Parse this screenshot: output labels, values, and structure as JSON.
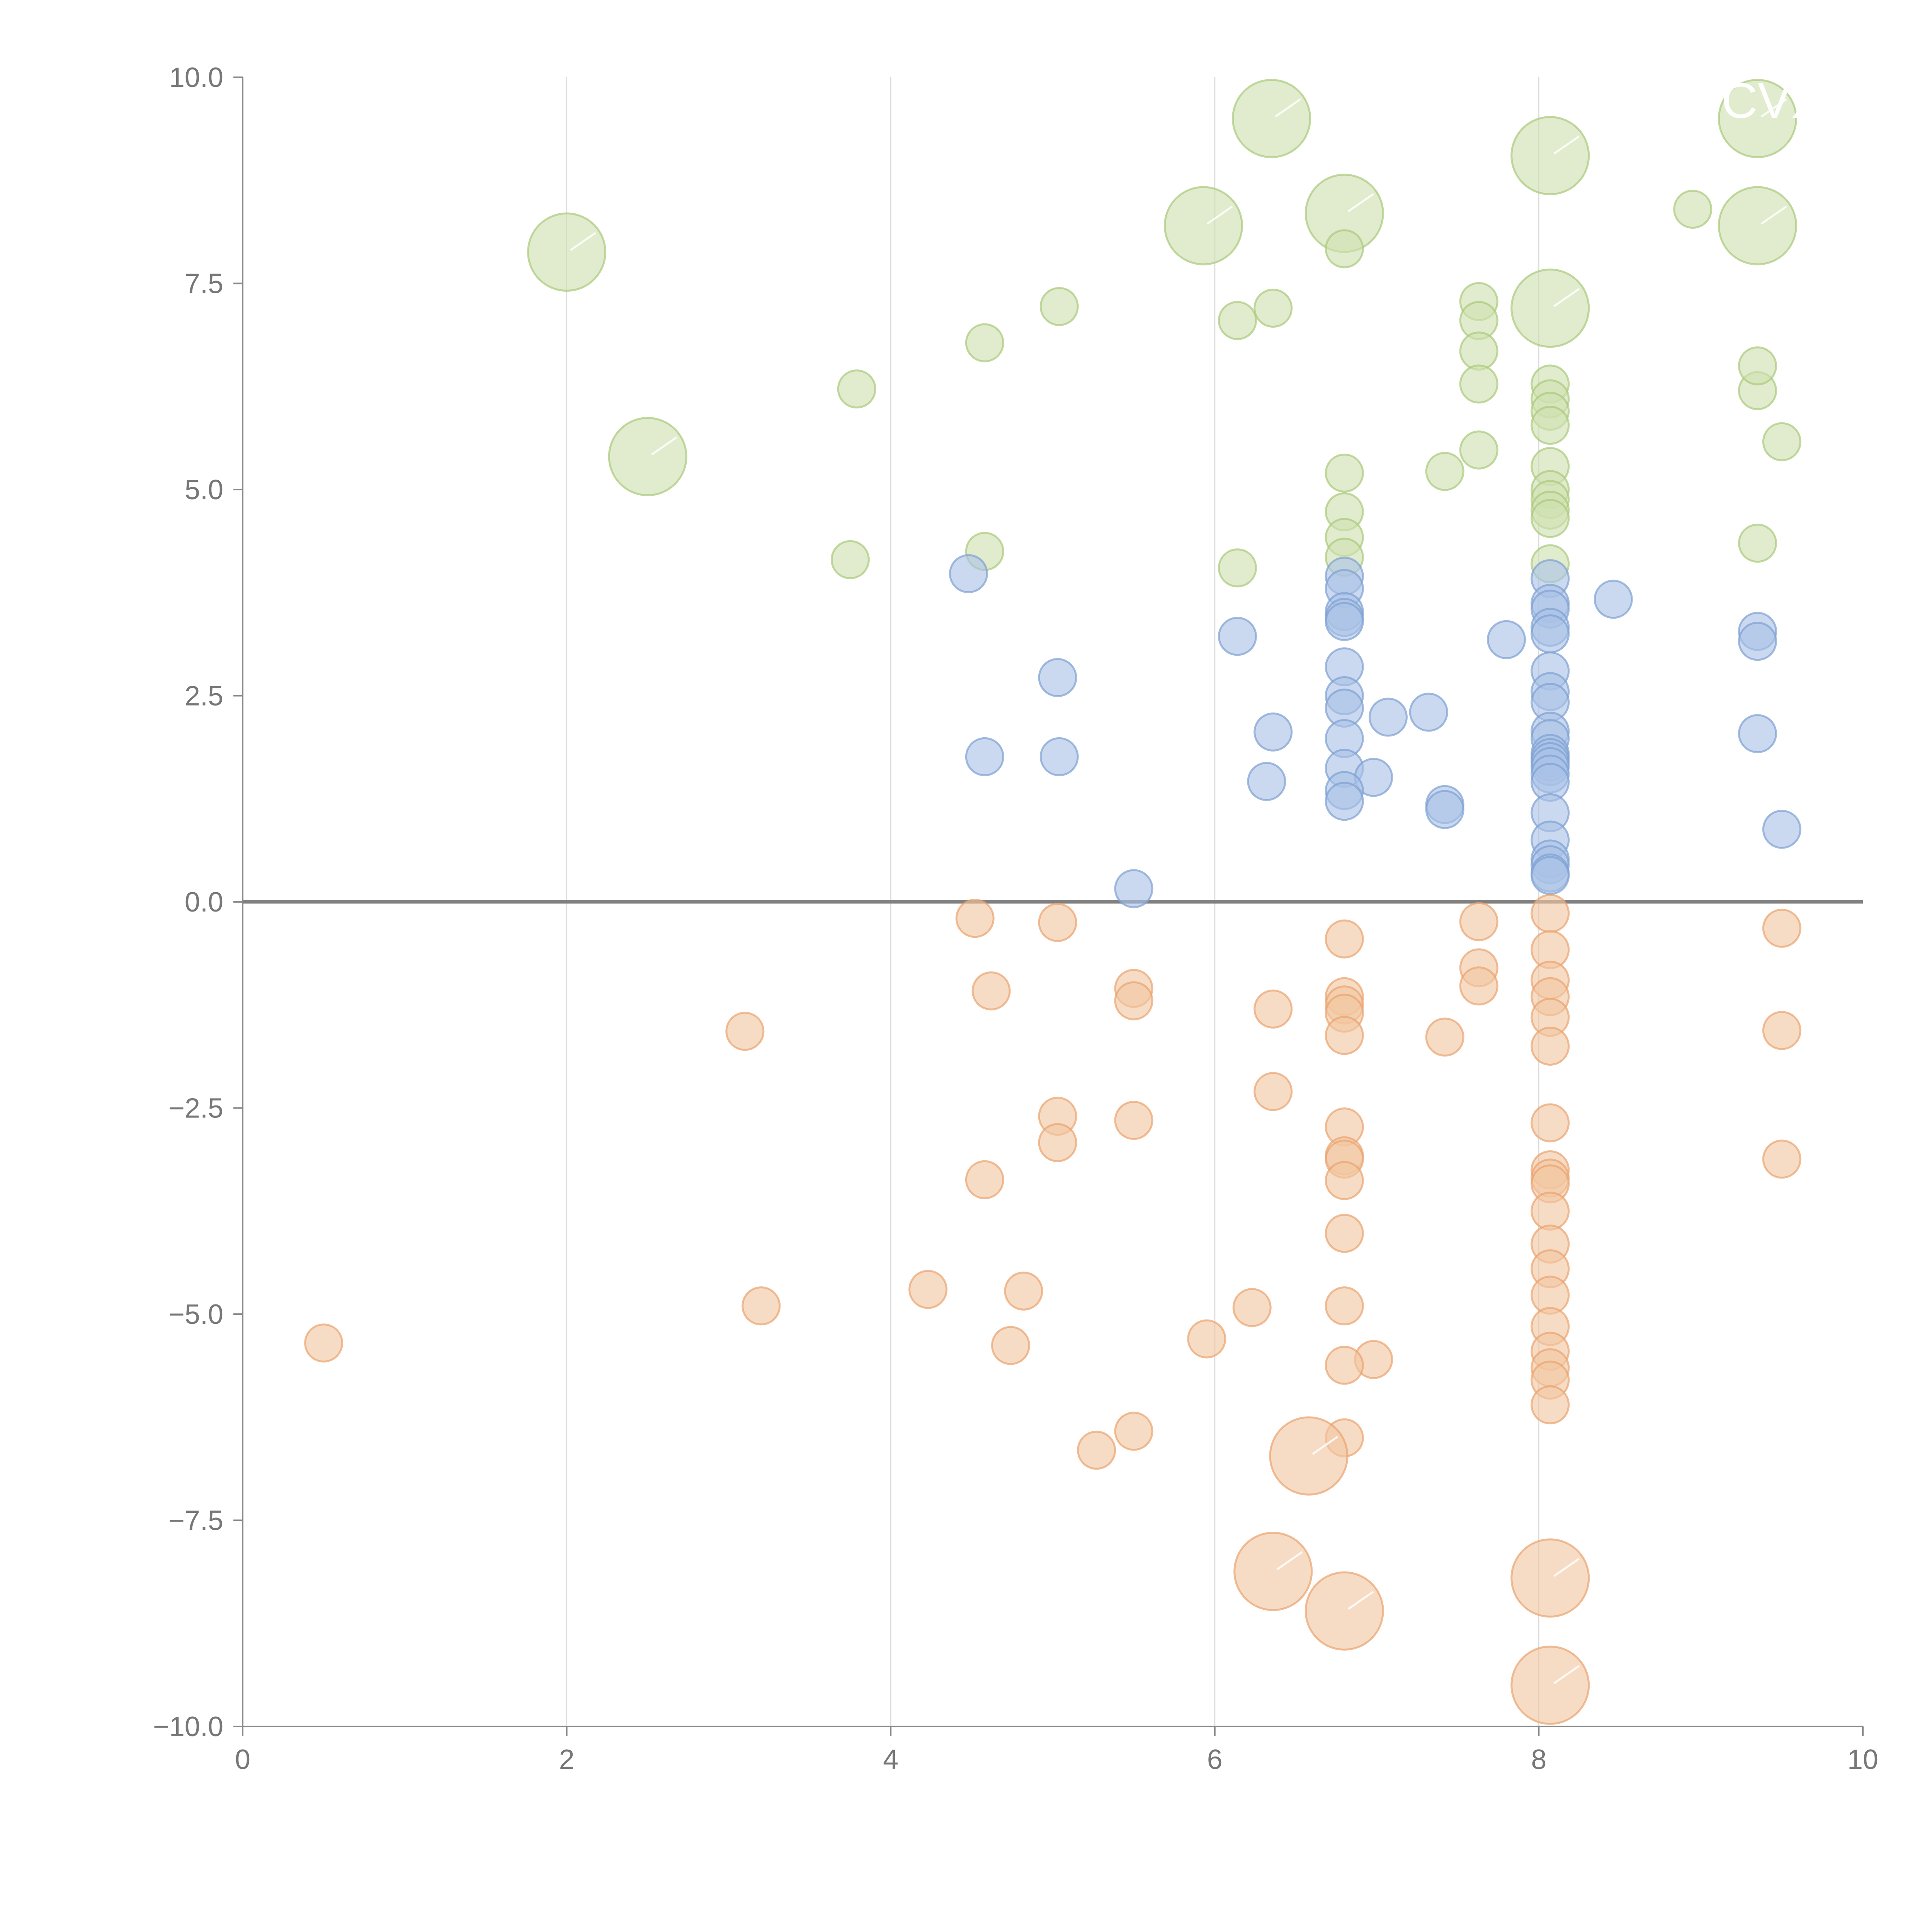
{
  "chart_data": {
    "type": "scatter",
    "subtype": "bubble",
    "title": "",
    "xlabel": "",
    "ylabel": "",
    "xlim": [
      0,
      10
    ],
    "ylim": [
      -10,
      10
    ],
    "x_ticks": [
      "0",
      "2",
      "4",
      "6",
      "8",
      "10"
    ],
    "y_ticks": [
      "10.0",
      "7.5",
      "5.0",
      "2.5",
      "0.0",
      "−2.5",
      "−5.0",
      "−7.5",
      "−10.0"
    ],
    "grid": "vertical",
    "zero_line": true,
    "series": [
      {
        "name": "green",
        "color": "#a9c97a",
        "fill": "#cfe0b0",
        "points": [
          [
            6.35,
            9.5,
            1
          ],
          [
            9.35,
            9.5,
            1
          ],
          [
            8.07,
            9.05,
            1
          ],
          [
            6.8,
            8.35,
            1
          ],
          [
            5.93,
            8.2,
            1
          ],
          [
            9.35,
            8.2,
            1
          ],
          [
            2.0,
            7.88,
            1
          ],
          [
            8.07,
            7.2,
            1
          ],
          [
            2.5,
            5.4,
            1
          ],
          [
            8.95,
            8.4,
            0
          ],
          [
            6.8,
            7.92,
            0
          ],
          [
            7.63,
            7.28,
            0
          ],
          [
            5.04,
            7.22,
            0
          ],
          [
            6.36,
            7.2,
            0
          ],
          [
            7.63,
            7.05,
            0
          ],
          [
            6.14,
            7.05,
            0
          ],
          [
            4.58,
            6.78,
            0
          ],
          [
            7.63,
            6.68,
            0
          ],
          [
            8.07,
            6.28,
            0
          ],
          [
            7.63,
            6.28,
            0
          ],
          [
            3.79,
            6.22,
            0
          ],
          [
            9.35,
            6.2,
            0
          ],
          [
            9.35,
            6.5,
            0
          ],
          [
            8.07,
            6.1,
            0
          ],
          [
            8.07,
            5.95,
            0
          ],
          [
            8.07,
            5.78,
            0
          ],
          [
            9.5,
            5.58,
            0
          ],
          [
            7.63,
            5.48,
            0
          ],
          [
            8.07,
            5.28,
            0
          ],
          [
            6.8,
            5.2,
            0
          ],
          [
            7.42,
            5.22,
            0
          ],
          [
            8.07,
            5.0,
            0
          ],
          [
            8.07,
            4.88,
            0
          ],
          [
            8.07,
            4.75,
            0
          ],
          [
            6.8,
            4.73,
            0
          ],
          [
            8.07,
            4.65,
            0
          ],
          [
            6.8,
            4.42,
            0
          ],
          [
            9.35,
            4.35,
            0
          ],
          [
            4.58,
            4.25,
            0
          ],
          [
            6.8,
            4.18,
            0
          ],
          [
            3.75,
            4.15,
            0
          ],
          [
            8.07,
            4.1,
            0
          ],
          [
            6.14,
            4.05,
            0
          ]
        ]
      },
      {
        "name": "blue",
        "color": "#7d9fd2",
        "fill": "#aac2e6",
        "points": [
          [
            4.48,
            3.98,
            0
          ],
          [
            6.8,
            3.95,
            0
          ],
          [
            8.07,
            3.92,
            0
          ],
          [
            6.8,
            3.8,
            0
          ],
          [
            8.46,
            3.67,
            0
          ],
          [
            8.07,
            3.62,
            0
          ],
          [
            8.07,
            3.55,
            0
          ],
          [
            6.8,
            3.52,
            0
          ],
          [
            6.8,
            3.45,
            0
          ],
          [
            6.8,
            3.4,
            0
          ],
          [
            8.07,
            3.33,
            0
          ],
          [
            8.07,
            3.25,
            0
          ],
          [
            9.35,
            3.28,
            0
          ],
          [
            6.14,
            3.22,
            0
          ],
          [
            7.8,
            3.18,
            0
          ],
          [
            9.35,
            3.16,
            0
          ],
          [
            6.8,
            2.85,
            0
          ],
          [
            8.07,
            2.8,
            0
          ],
          [
            5.03,
            2.72,
            0
          ],
          [
            8.07,
            2.55,
            0
          ],
          [
            6.8,
            2.5,
            0
          ],
          [
            8.07,
            2.42,
            0
          ],
          [
            6.8,
            2.35,
            0
          ],
          [
            7.32,
            2.3,
            0
          ],
          [
            7.07,
            2.24,
            0
          ],
          [
            6.36,
            2.06,
            0
          ],
          [
            8.07,
            2.07,
            0
          ],
          [
            9.35,
            2.04,
            0
          ],
          [
            8.07,
            1.98,
            0
          ],
          [
            6.8,
            1.98,
            0
          ],
          [
            8.07,
            1.8,
            0
          ],
          [
            8.07,
            1.75,
            0
          ],
          [
            4.58,
            1.76,
            0
          ],
          [
            5.04,
            1.76,
            0
          ],
          [
            8.07,
            1.7,
            0
          ],
          [
            8.07,
            1.64,
            0
          ],
          [
            6.8,
            1.62,
            0
          ],
          [
            8.07,
            1.55,
            0
          ],
          [
            6.98,
            1.51,
            0
          ],
          [
            8.07,
            1.45,
            0
          ],
          [
            6.32,
            1.46,
            0
          ],
          [
            6.8,
            1.35,
            0
          ],
          [
            6.8,
            1.22,
            0
          ],
          [
            7.42,
            1.18,
            0
          ],
          [
            7.42,
            1.12,
            0
          ],
          [
            8.07,
            1.08,
            0
          ],
          [
            9.5,
            0.88,
            0
          ],
          [
            8.07,
            0.75,
            0
          ],
          [
            8.07,
            0.52,
            0
          ],
          [
            8.07,
            0.45,
            0
          ],
          [
            8.07,
            0.35,
            0
          ],
          [
            8.07,
            0.32,
            0
          ],
          [
            5.5,
            0.16,
            0
          ]
        ]
      },
      {
        "name": "orange",
        "color": "#e9a36e",
        "fill": "#f2c6a2",
        "points": [
          [
            8.07,
            -0.14,
            0
          ],
          [
            4.52,
            -0.2,
            0
          ],
          [
            7.63,
            -0.24,
            0
          ],
          [
            5.03,
            -0.25,
            0
          ],
          [
            9.5,
            -0.32,
            0
          ],
          [
            6.8,
            -0.45,
            0
          ],
          [
            8.07,
            -0.58,
            0
          ],
          [
            7.63,
            -0.8,
            0
          ],
          [
            8.07,
            -0.95,
            0
          ],
          [
            4.62,
            -1.08,
            0
          ],
          [
            5.5,
            -1.05,
            0
          ],
          [
            7.63,
            -1.02,
            0
          ],
          [
            6.8,
            -1.15,
            0
          ],
          [
            8.07,
            -1.15,
            0
          ],
          [
            6.8,
            -1.25,
            0
          ],
          [
            5.5,
            -1.2,
            0
          ],
          [
            6.36,
            -1.3,
            0
          ],
          [
            6.8,
            -1.35,
            0
          ],
          [
            8.07,
            -1.4,
            0
          ],
          [
            3.1,
            -1.57,
            0
          ],
          [
            9.5,
            -1.56,
            0
          ],
          [
            6.8,
            -1.62,
            0
          ],
          [
            7.42,
            -1.64,
            0
          ],
          [
            8.07,
            -1.75,
            0
          ],
          [
            6.36,
            -2.3,
            0
          ],
          [
            5.03,
            -2.6,
            0
          ],
          [
            5.5,
            -2.65,
            0
          ],
          [
            8.07,
            -2.68,
            0
          ],
          [
            6.8,
            -2.73,
            0
          ],
          [
            5.03,
            -2.92,
            0
          ],
          [
            6.8,
            -3.08,
            0
          ],
          [
            6.8,
            -3.12,
            0
          ],
          [
            9.5,
            -3.12,
            0
          ],
          [
            8.07,
            -3.25,
            0
          ],
          [
            8.07,
            -3.35,
            0
          ],
          [
            8.07,
            -3.42,
            0
          ],
          [
            4.58,
            -3.37,
            0
          ],
          [
            6.8,
            -3.38,
            0
          ],
          [
            8.07,
            -3.75,
            0
          ],
          [
            6.8,
            -4.02,
            0
          ],
          [
            8.07,
            -4.15,
            0
          ],
          [
            8.07,
            -4.45,
            0
          ],
          [
            4.23,
            -4.7,
            0
          ],
          [
            4.82,
            -4.72,
            0
          ],
          [
            8.07,
            -4.77,
            0
          ],
          [
            6.8,
            -4.9,
            0
          ],
          [
            3.2,
            -4.9,
            0
          ],
          [
            6.23,
            -4.92,
            0
          ],
          [
            8.07,
            -5.15,
            0
          ],
          [
            5.95,
            -5.3,
            0
          ],
          [
            0.5,
            -5.35,
            0
          ],
          [
            4.74,
            -5.38,
            0
          ],
          [
            8.07,
            -5.45,
            0
          ],
          [
            6.98,
            -5.55,
            0
          ],
          [
            6.8,
            -5.62,
            0
          ],
          [
            8.07,
            -5.65,
            0
          ],
          [
            8.07,
            -5.8,
            0
          ],
          [
            8.07,
            -6.1,
            0
          ],
          [
            5.5,
            -6.42,
            0
          ],
          [
            6.8,
            -6.5,
            0
          ],
          [
            5.27,
            -6.65,
            0
          ],
          [
            6.58,
            -6.72,
            1
          ],
          [
            6.36,
            -8.12,
            1
          ],
          [
            8.07,
            -8.2,
            1
          ],
          [
            6.8,
            -8.6,
            1
          ],
          [
            8.07,
            -9.5,
            1
          ]
        ]
      }
    ]
  },
  "overlay_text": {
    "top_right_label": "CVX"
  }
}
